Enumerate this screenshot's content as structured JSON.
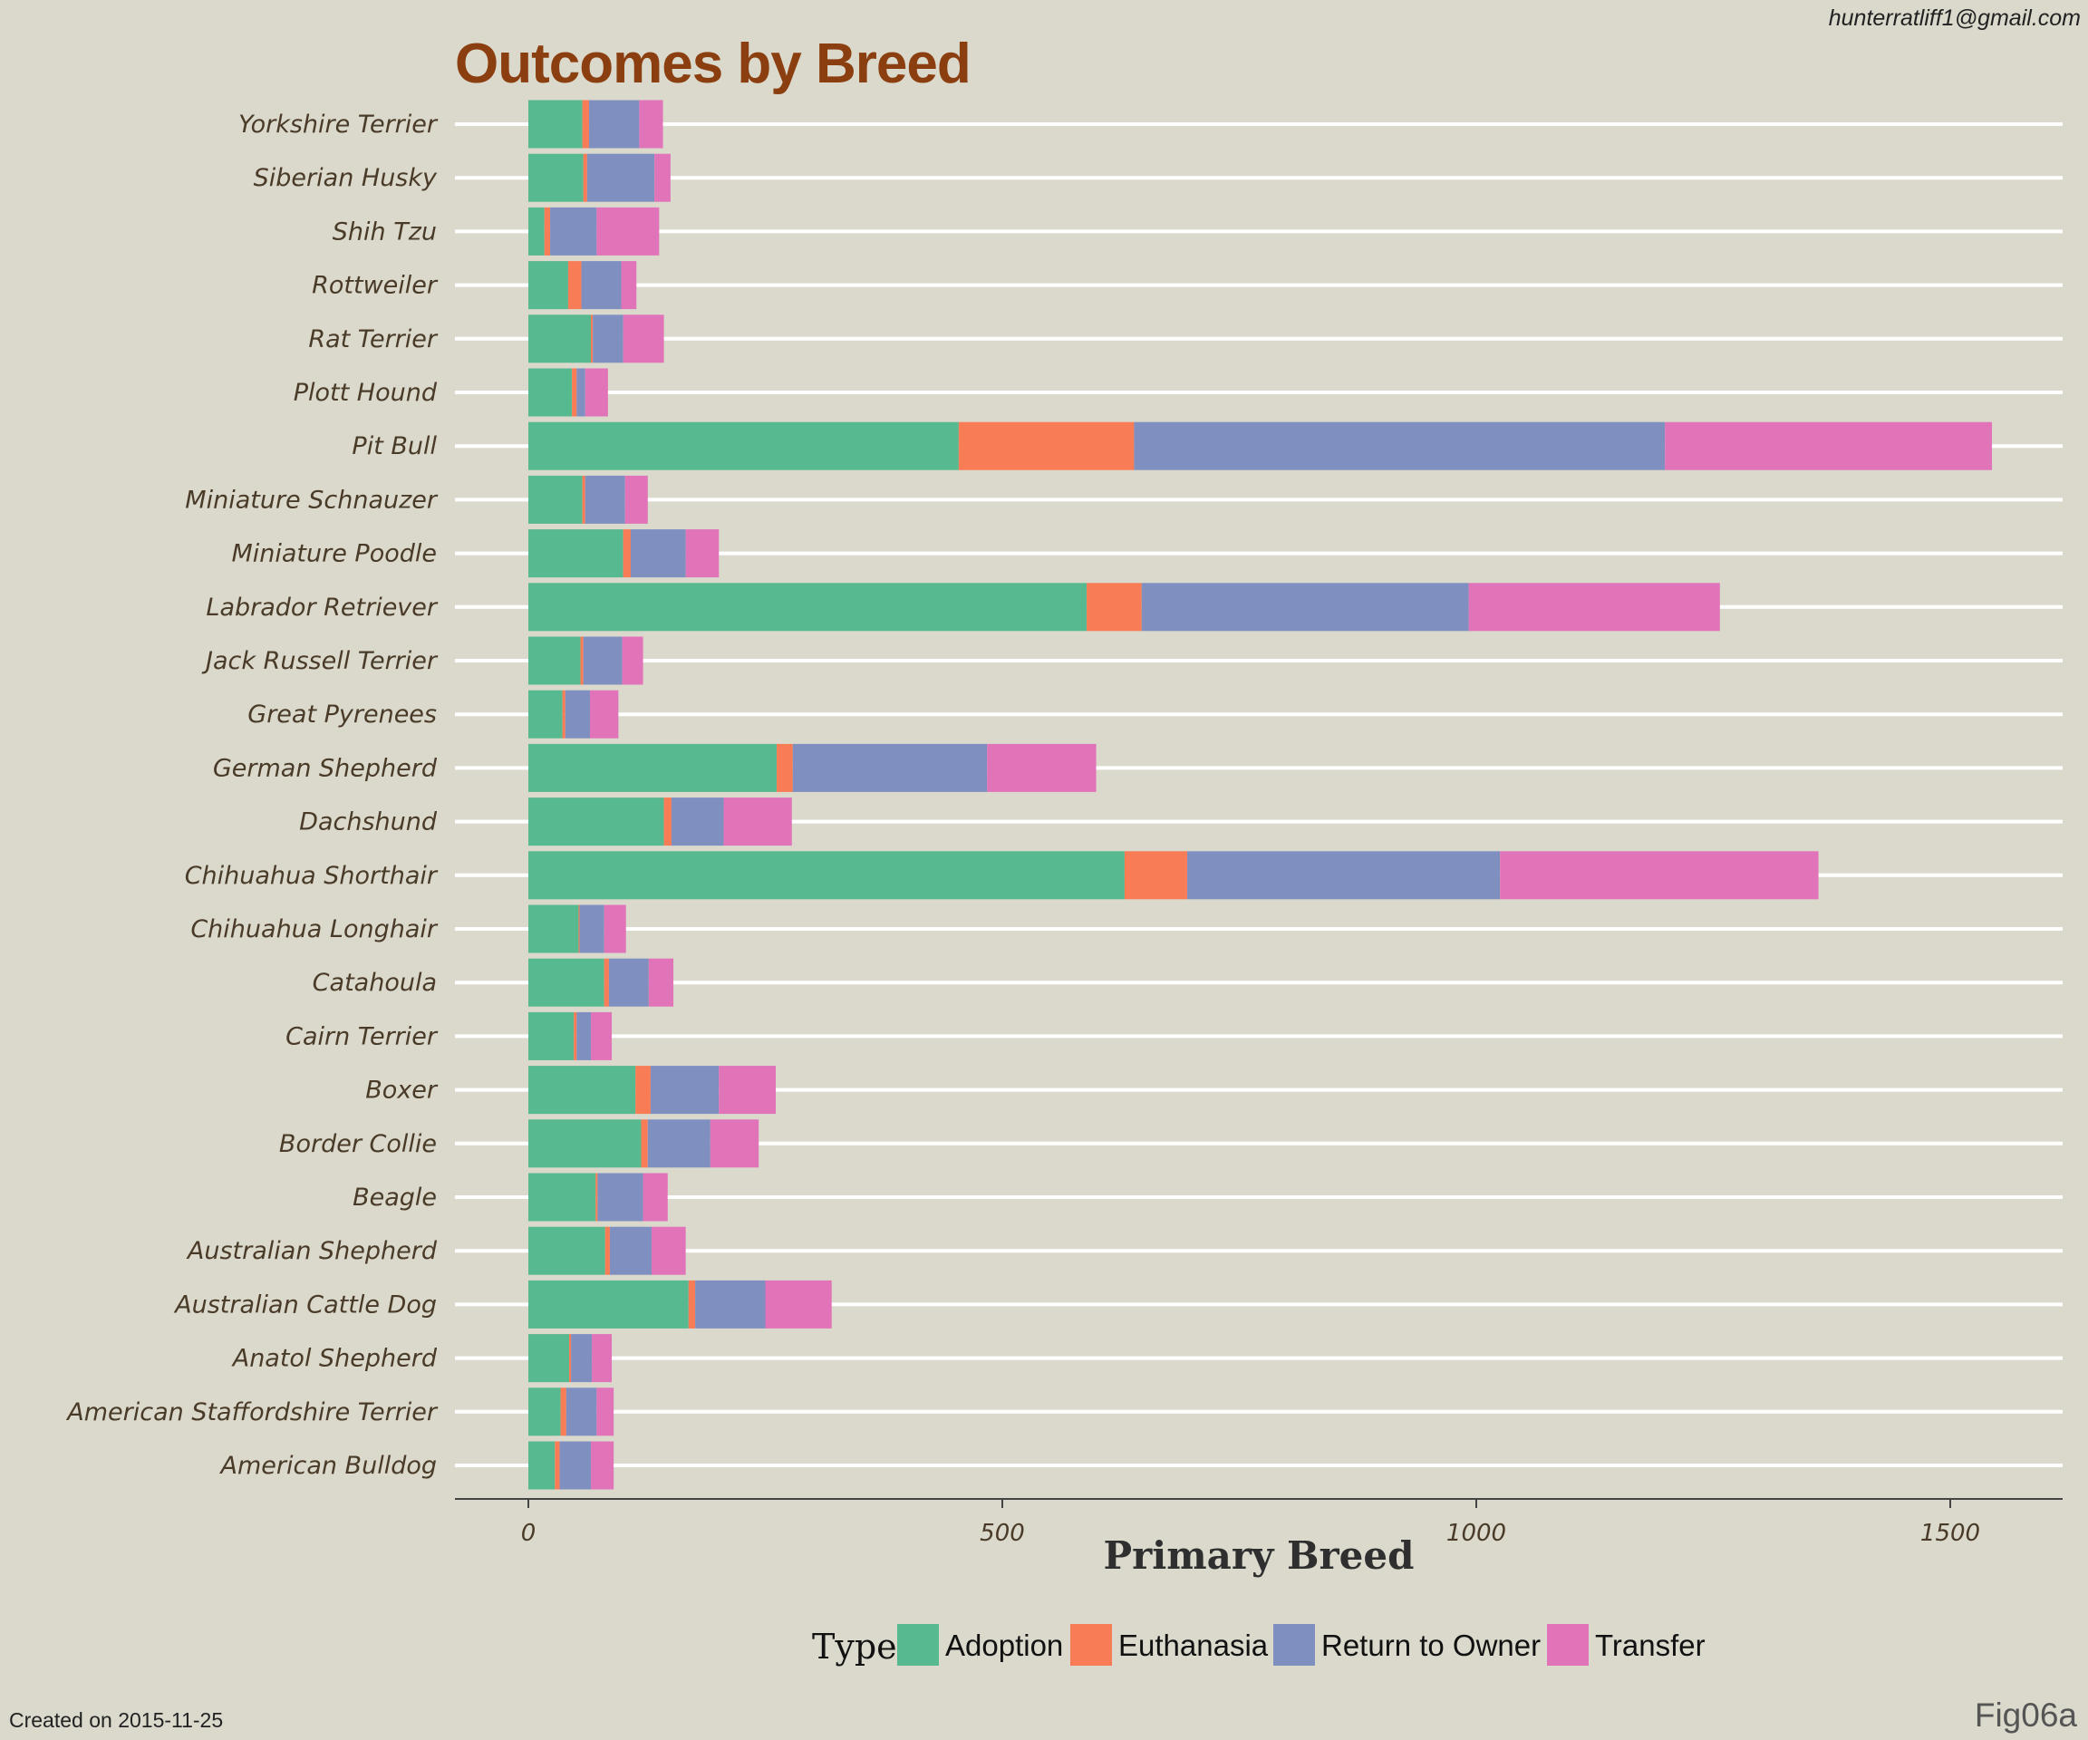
{
  "meta": {
    "email": "hunterratliff1@gmail.com",
    "created": "Created on 2015-11-25",
    "fig": "Fig06a"
  },
  "chart_data": {
    "type": "bar",
    "orientation": "horizontal",
    "stacked": true,
    "title": "Outcomes by Breed",
    "xlabel": "Primary Breed",
    "ylabel": "",
    "xlim": [
      -75,
      1610
    ],
    "xticks": [
      0,
      500,
      1000,
      1500
    ],
    "grid": "horizontal",
    "legend": {
      "title": "Type",
      "placement": "bottom"
    },
    "categories": [
      "Yorkshire Terrier",
      "Siberian Husky",
      "Shih Tzu",
      "Rottweiler",
      "Rat Terrier",
      "Plott Hound",
      "Pit Bull",
      "Miniature Schnauzer",
      "Miniature Poodle",
      "Labrador Retriever",
      "Jack Russell Terrier",
      "Great Pyrenees",
      "German Shepherd",
      "Dachshund",
      "Chihuahua Shorthair",
      "Chihuahua Longhair",
      "Catahoula",
      "Cairn Terrier",
      "Boxer",
      "Border Collie",
      "Beagle",
      "Australian Shepherd",
      "Australian Cattle Dog",
      "Anatol Shepherd",
      "American Staffordshire Terrier",
      "American Bulldog"
    ],
    "series": [
      {
        "name": "Adoption",
        "color": "#56b990",
        "values": [
          57,
          58,
          17,
          42,
          66,
          46,
          454,
          57,
          100,
          589,
          55,
          36,
          262,
          143,
          629,
          53,
          80,
          48,
          113,
          119,
          71,
          81,
          169,
          43,
          34,
          28
        ]
      },
      {
        "name": "Euthanasia",
        "color": "#f87c56",
        "values": [
          7,
          4,
          6,
          14,
          2,
          5,
          185,
          3,
          8,
          58,
          3,
          3,
          17,
          8,
          66,
          1,
          5,
          3,
          16,
          7,
          2,
          5,
          7,
          2,
          6,
          5
        ]
      },
      {
        "name": "Return to Owner",
        "color": "#7f90c0",
        "values": [
          53,
          71,
          49,
          42,
          32,
          9,
          560,
          42,
          58,
          345,
          41,
          26,
          205,
          55,
          330,
          26,
          42,
          15,
          72,
          66,
          48,
          44,
          74,
          22,
          32,
          33
        ]
      },
      {
        "name": "Transfer",
        "color": "#e174b8",
        "values": [
          25,
          17,
          66,
          16,
          43,
          24,
          345,
          24,
          35,
          265,
          22,
          30,
          115,
          72,
          336,
          23,
          26,
          22,
          60,
          51,
          26,
          36,
          70,
          21,
          18,
          24
        ]
      }
    ]
  }
}
